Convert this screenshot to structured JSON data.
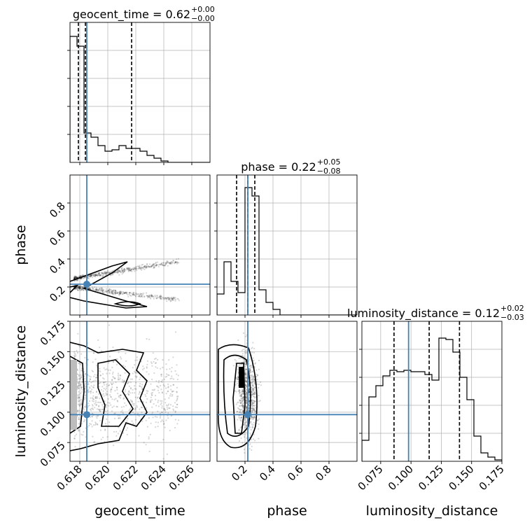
{
  "chart_data": {
    "type": "corner",
    "truth_color": "#4682b4",
    "parameters": [
      {
        "name": "geocent_time",
        "title": "geocent_time = 0.62",
        "title_plus": "+0.00",
        "title_minus": "−0.00",
        "xlabel": "geocent_time",
        "range": [
          0.6173,
          0.6273
        ],
        "ticks": [
          0.618,
          0.62,
          0.622,
          0.624,
          0.626
        ],
        "tick_labels": [
          "0.618",
          "0.620",
          "0.622",
          "0.624",
          "0.626"
        ],
        "truth": 0.6185,
        "quantiles": [
          0.6179,
          0.6184,
          0.6217
        ],
        "hist": [
          0.9,
          0.83,
          0.21,
          0.18,
          0.12,
          0.08,
          0.09,
          0.12,
          0.1,
          0.1,
          0.08,
          0.05,
          0.03,
          0.01,
          0.0,
          0.0,
          0.0,
          0.0,
          0.0,
          0.0
        ]
      },
      {
        "name": "phase",
        "title": "phase = 0.22",
        "title_plus": "+0.05",
        "title_minus": "−0.08",
        "xlabel": "phase",
        "ylabel": "phase",
        "range": [
          0.0,
          1.0
        ],
        "ticks": [
          0.2,
          0.4,
          0.6,
          0.8
        ],
        "tick_labels": [
          "0.2",
          "0.4",
          "0.6",
          "0.8"
        ],
        "truth": 0.22,
        "quantiles": [
          0.14,
          0.22,
          0.27
        ],
        "hist": [
          0.15,
          0.38,
          0.24,
          0.16,
          0.91,
          0.85,
          0.18,
          0.09,
          0.04,
          0.0,
          0.0,
          0.0,
          0.0,
          0.0,
          0.0,
          0.0,
          0.0,
          0.0,
          0.0,
          0.0
        ]
      },
      {
        "name": "luminosity_distance",
        "title": "luminosity_distance = 0.12",
        "title_plus": "+0.02",
        "title_minus": "−0.03",
        "xlabel": "luminosity_distance",
        "ylabel": "luminosity_distance",
        "range": [
          0.0595,
          0.175
        ],
        "ticks": [
          0.075,
          0.1,
          0.125,
          0.15,
          0.175
        ],
        "tick_labels": [
          "0.075",
          "0.100",
          "0.125",
          "0.150",
          "0.175"
        ],
        "ytick_labels": [
          "0.075",
          "0.100",
          "0.125",
          "0.150",
          "0.175"
        ],
        "truth": 0.098,
        "quantiles": [
          0.086,
          0.115,
          0.14
        ],
        "hist": [
          0.15,
          0.46,
          0.54,
          0.61,
          0.65,
          0.64,
          0.65,
          0.64,
          0.64,
          0.62,
          0.58,
          0.88,
          0.87,
          0.78,
          0.6,
          0.44,
          0.18,
          0.06,
          0.03,
          0.01
        ]
      }
    ]
  }
}
